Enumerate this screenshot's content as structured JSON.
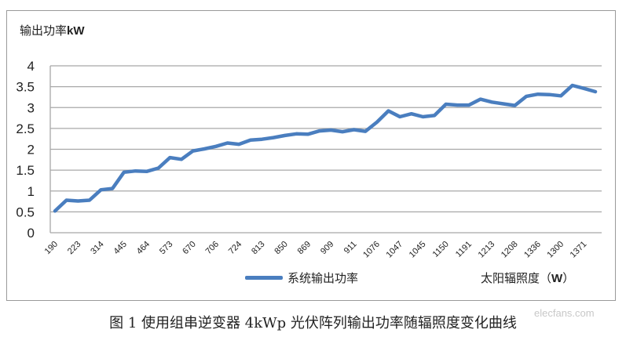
{
  "chart_data": {
    "type": "line",
    "title": "",
    "ylabel": "输出功率kW",
    "xlabel": "太阳辐照度（W）",
    "ylim": [
      0,
      4
    ],
    "yticks": [
      "0",
      "0.5",
      "1",
      "1.5",
      "2",
      "2.5",
      "3",
      "3.5",
      "4"
    ],
    "grid": true,
    "legend_position": "bottom",
    "tick_labels_shown": [
      "190",
      "223",
      "314",
      "445",
      "464",
      "573",
      "670",
      "706",
      "724",
      "813",
      "850",
      "869",
      "909",
      "911",
      "1076",
      "1047",
      "1045",
      "1150",
      "1191",
      "1213",
      "1208",
      "1336",
      "1300",
      "1371"
    ],
    "label_interval": 2,
    "series": [
      {
        "name": "系统输出功率",
        "color": "#4a7ebf",
        "values": [
          0.52,
          0.78,
          0.76,
          0.78,
          1.03,
          1.06,
          1.45,
          1.48,
          1.47,
          1.55,
          1.8,
          1.76,
          1.96,
          2.01,
          2.07,
          2.15,
          2.12,
          2.22,
          2.24,
          2.28,
          2.33,
          2.37,
          2.36,
          2.44,
          2.46,
          2.42,
          2.47,
          2.43,
          2.65,
          2.92,
          2.78,
          2.85,
          2.78,
          2.81,
          3.08,
          3.06,
          3.06,
          3.2,
          3.13,
          3.09,
          3.05,
          3.27,
          3.32,
          3.31,
          3.28,
          3.53,
          3.46,
          3.38
        ]
      }
    ]
  },
  "labels": {
    "y_axis_title_cn": "输出功率",
    "y_axis_title_unit": "kW",
    "x_axis_title_cn": "太阳辐照度（",
    "x_axis_title_unit": "W",
    "x_axis_title_close": "）",
    "legend": "系统输出功率",
    "caption": "图 1  使用组串逆变器 4kWp 光伏阵列输出功率随辐照度变化曲线",
    "watermark": "elecfans.com"
  }
}
